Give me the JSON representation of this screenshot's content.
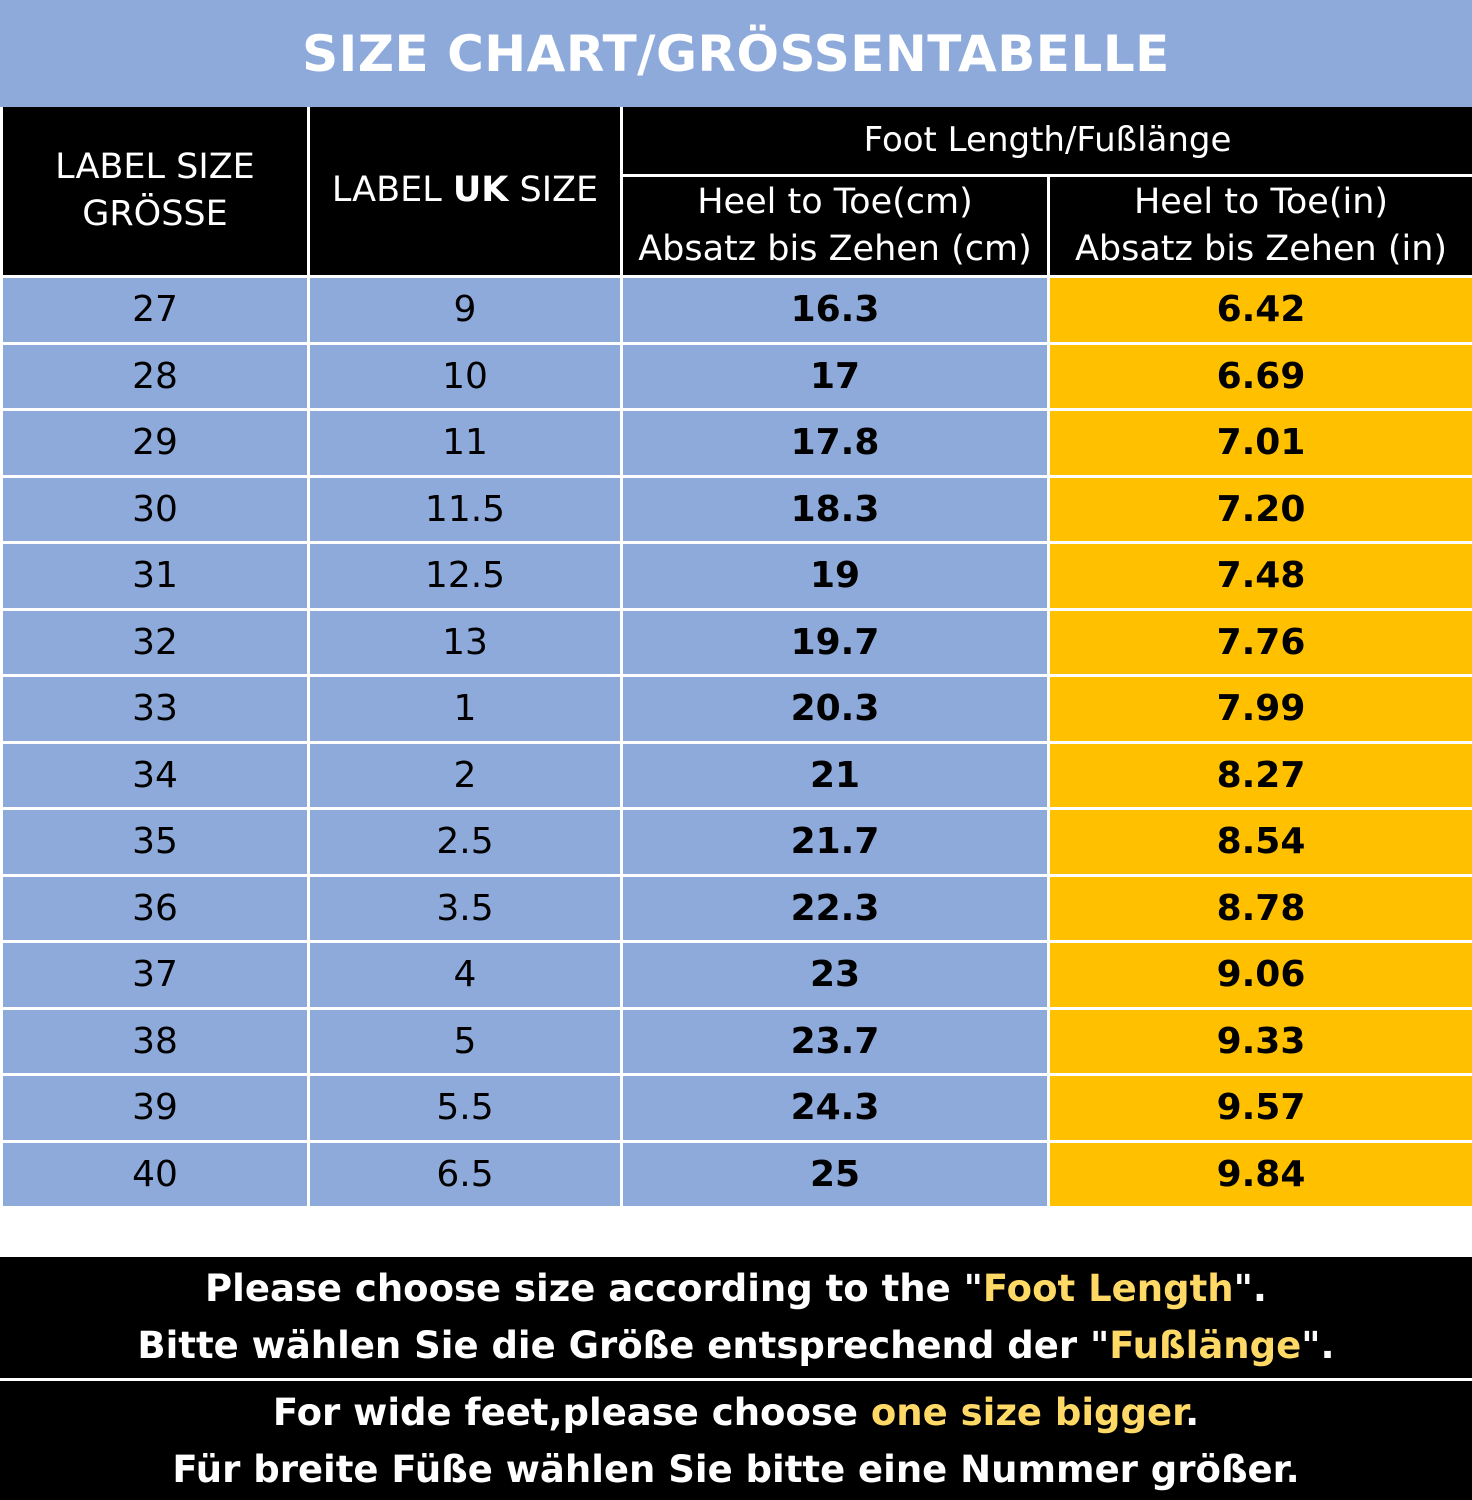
{
  "title": "SIZE CHART/GRÖSSENTABELLE",
  "header": {
    "label_size_line1": "LABEL SIZE",
    "label_size_line2": "GRÖSSE",
    "uk_prefix": "LABEL ",
    "uk_bold": "UK",
    "uk_suffix": " SIZE",
    "group": "Foot Length/Fußlänge",
    "cm_line1": "Heel to Toe(cm)",
    "cm_line2": "Absatz bis Zehen (cm)",
    "in_line1": "Heel to Toe(in)",
    "in_line2": "Absatz bis Zehen (in)"
  },
  "rows": [
    {
      "size": "27",
      "uk": "9",
      "cm": "16.3",
      "in": "6.42"
    },
    {
      "size": "28",
      "uk": "10",
      "cm": "17",
      "in": "6.69"
    },
    {
      "size": "29",
      "uk": "11",
      "cm": "17.8",
      "in": "7.01"
    },
    {
      "size": "30",
      "uk": "11.5",
      "cm": "18.3",
      "in": "7.20"
    },
    {
      "size": "31",
      "uk": "12.5",
      "cm": "19",
      "in": "7.48"
    },
    {
      "size": "32",
      "uk": "13",
      "cm": "19.7",
      "in": "7.76"
    },
    {
      "size": "33",
      "uk": "1",
      "cm": "20.3",
      "in": "7.99"
    },
    {
      "size": "34",
      "uk": "2",
      "cm": "21",
      "in": "8.27"
    },
    {
      "size": "35",
      "uk": "2.5",
      "cm": "21.7",
      "in": "8.54"
    },
    {
      "size": "36",
      "uk": "3.5",
      "cm": "22.3",
      "in": "8.78"
    },
    {
      "size": "37",
      "uk": "4",
      "cm": "23",
      "in": "9.06"
    },
    {
      "size": "38",
      "uk": "5",
      "cm": "23.7",
      "in": "9.33"
    },
    {
      "size": "39",
      "uk": "5.5",
      "cm": "24.3",
      "in": "9.57"
    },
    {
      "size": "40",
      "uk": "6.5",
      "cm": "25",
      "in": "9.84"
    }
  ],
  "notes": {
    "line1_pre": "Please choose size according to the \"",
    "line1_hl": "Foot Length",
    "line1_post": "\".",
    "line2_pre": "Bitte wählen Sie die Größe entsprechend der \"",
    "line2_hl": "Fußlänge",
    "line2_post": "\".",
    "line3_pre": "For wide feet,please choose ",
    "line3_hl": "one size bigger",
    "line3_post": ".",
    "line4": "Für breite Füße wählen Sie bitte eine Nummer größer."
  },
  "colors": {
    "blue": "#8eaadb",
    "gold": "#ffc000",
    "highlight_text": "#ffd966",
    "header_bg": "#000000"
  }
}
